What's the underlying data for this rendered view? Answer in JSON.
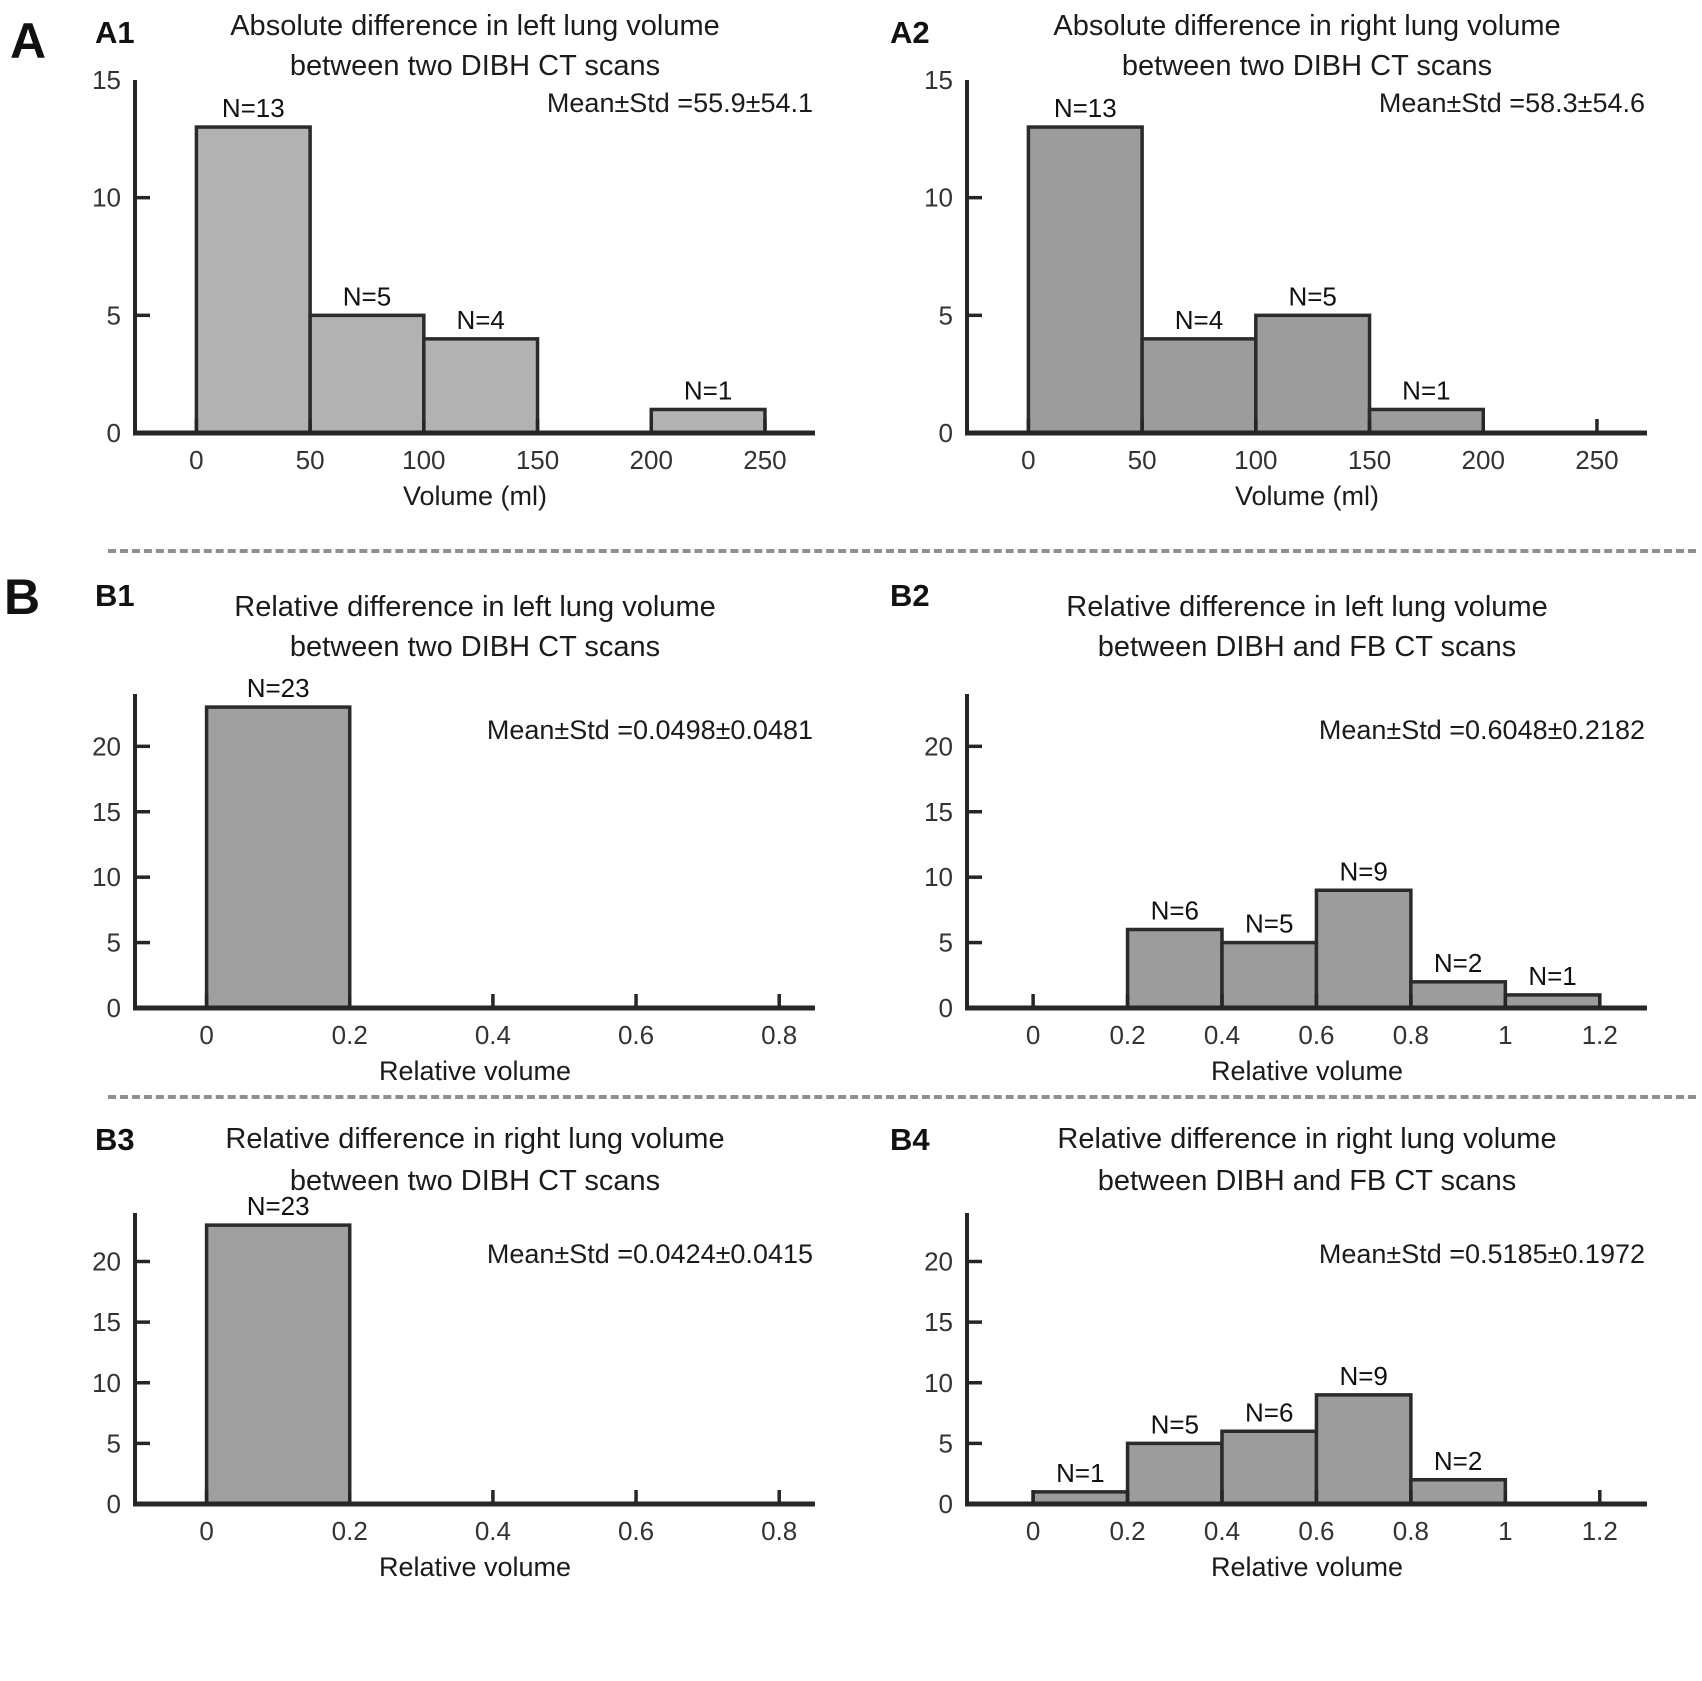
{
  "figure": {
    "group_labels": [
      "A",
      "B"
    ],
    "background_color": "#ffffff",
    "axis_color": "#262626",
    "separator_color": "#8f8f8f",
    "text_color": "#1b1b1b"
  },
  "chart_data": [
    {
      "id": "A1",
      "panel_tag": "A1",
      "type": "bar",
      "subtype": "histogram",
      "title_lines": [
        "Absolute difference in left lung volume",
        "between two DIBH CT scans"
      ],
      "xlabel": "Volume (ml)",
      "annotation": "Mean±Std =55.9±54.1",
      "bins": [
        {
          "range": [
            0,
            50
          ],
          "count": 13,
          "label": "N=13"
        },
        {
          "range": [
            50,
            100
          ],
          "count": 5,
          "label": "N=5"
        },
        {
          "range": [
            100,
            150
          ],
          "count": 4,
          "label": "N=4"
        },
        {
          "range": [
            200,
            250
          ],
          "count": 1,
          "label": "N=1"
        }
      ],
      "xticks": [
        {
          "v": 0,
          "label": "0"
        },
        {
          "v": 50,
          "label": "50"
        },
        {
          "v": 100,
          "label": "100"
        },
        {
          "v": 150,
          "label": "150"
        },
        {
          "v": 200,
          "label": "200"
        },
        {
          "v": 250,
          "label": "250"
        }
      ],
      "yticks": [
        {
          "v": 0,
          "label": "0"
        },
        {
          "v": 5,
          "label": "5"
        },
        {
          "v": 10,
          "label": "10"
        },
        {
          "v": 15,
          "label": "15"
        }
      ],
      "xlim": [
        -27,
        272
      ],
      "ylim": [
        0,
        15
      ],
      "grid": false,
      "bar_color": "#b2b2b2",
      "bar_edge_color": "#2b2b2b"
    },
    {
      "id": "A2",
      "panel_tag": "A2",
      "type": "bar",
      "subtype": "histogram",
      "title_lines": [
        "Absolute difference in right lung volume",
        "between two DIBH CT scans"
      ],
      "xlabel": "Volume (ml)",
      "annotation": "Mean±Std =58.3±54.6",
      "bins": [
        {
          "range": [
            0,
            50
          ],
          "count": 13,
          "label": "N=13"
        },
        {
          "range": [
            50,
            100
          ],
          "count": 4,
          "label": "N=4"
        },
        {
          "range": [
            100,
            150
          ],
          "count": 5,
          "label": "N=5"
        },
        {
          "range": [
            150,
            200
          ],
          "count": 1,
          "label": "N=1"
        }
      ],
      "xticks": [
        {
          "v": 0,
          "label": "0"
        },
        {
          "v": 50,
          "label": "50"
        },
        {
          "v": 100,
          "label": "100"
        },
        {
          "v": 150,
          "label": "150"
        },
        {
          "v": 200,
          "label": "200"
        },
        {
          "v": 250,
          "label": "250"
        }
      ],
      "yticks": [
        {
          "v": 0,
          "label": "0"
        },
        {
          "v": 5,
          "label": "5"
        },
        {
          "v": 10,
          "label": "10"
        },
        {
          "v": 15,
          "label": "15"
        }
      ],
      "xlim": [
        -27,
        272
      ],
      "ylim": [
        0,
        15
      ],
      "grid": false,
      "bar_color": "#9c9c9c",
      "bar_edge_color": "#2b2b2b"
    },
    {
      "id": "B1",
      "panel_tag": "B1",
      "type": "bar",
      "subtype": "histogram",
      "title_lines": [
        "Relative difference in left lung volume",
        "between two DIBH CT scans"
      ],
      "xlabel": "Relative volume",
      "annotation": "Mean±Std =0.0498±0.0481",
      "bins": [
        {
          "range": [
            0,
            0.2
          ],
          "count": 23,
          "label": "N=23"
        }
      ],
      "xticks": [
        {
          "v": 0,
          "label": "0"
        },
        {
          "v": 0.2,
          "label": "0.2"
        },
        {
          "v": 0.4,
          "label": "0.4"
        },
        {
          "v": 0.6,
          "label": "0.6"
        },
        {
          "v": 0.8,
          "label": "0.8"
        }
      ],
      "yticks": [
        {
          "v": 0,
          "label": "0"
        },
        {
          "v": 5,
          "label": "5"
        },
        {
          "v": 10,
          "label": "10"
        },
        {
          "v": 15,
          "label": "15"
        },
        {
          "v": 20,
          "label": "20"
        }
      ],
      "xlim": [
        -0.1,
        0.85
      ],
      "ylim": [
        0,
        24
      ],
      "grid": false,
      "bar_color": "#9f9f9f",
      "bar_edge_color": "#2b2b2b"
    },
    {
      "id": "B2",
      "panel_tag": "B2",
      "type": "bar",
      "subtype": "histogram",
      "title_lines": [
        "Relative difference in left lung volume",
        "between DIBH and FB CT scans"
      ],
      "xlabel": "Relative volume",
      "annotation": "Mean±Std =0.6048±0.2182",
      "bins": [
        {
          "range": [
            0.2,
            0.4
          ],
          "count": 6,
          "label": "N=6"
        },
        {
          "range": [
            0.4,
            0.6
          ],
          "count": 5,
          "label": "N=5"
        },
        {
          "range": [
            0.6,
            0.8
          ],
          "count": 9,
          "label": "N=9"
        },
        {
          "range": [
            0.8,
            1.0
          ],
          "count": 2,
          "label": "N=2"
        },
        {
          "range": [
            1.0,
            1.2
          ],
          "count": 1,
          "label": "N=1"
        }
      ],
      "xticks": [
        {
          "v": 0,
          "label": "0"
        },
        {
          "v": 0.2,
          "label": "0.2"
        },
        {
          "v": 0.4,
          "label": "0.4"
        },
        {
          "v": 0.6,
          "label": "0.6"
        },
        {
          "v": 0.8,
          "label": "0.8"
        },
        {
          "v": 1.0,
          "label": "1"
        },
        {
          "v": 1.2,
          "label": "1.2"
        }
      ],
      "yticks": [
        {
          "v": 0,
          "label": "0"
        },
        {
          "v": 5,
          "label": "5"
        },
        {
          "v": 10,
          "label": "10"
        },
        {
          "v": 15,
          "label": "15"
        },
        {
          "v": 20,
          "label": "20"
        }
      ],
      "xlim": [
        -0.14,
        1.3
      ],
      "ylim": [
        0,
        24
      ],
      "grid": false,
      "bar_color": "#9c9c9c",
      "bar_edge_color": "#2b2b2b"
    },
    {
      "id": "B3",
      "panel_tag": "B3",
      "type": "bar",
      "subtype": "histogram",
      "title_lines": [
        "Relative difference in right lung volume",
        "between two DIBH CT scans"
      ],
      "xlabel": "Relative volume",
      "annotation": "Mean±Std =0.0424±0.0415",
      "bins": [
        {
          "range": [
            0,
            0.2
          ],
          "count": 23,
          "label": "N=23"
        }
      ],
      "xticks": [
        {
          "v": 0,
          "label": "0"
        },
        {
          "v": 0.2,
          "label": "0.2"
        },
        {
          "v": 0.4,
          "label": "0.4"
        },
        {
          "v": 0.6,
          "label": "0.6"
        },
        {
          "v": 0.8,
          "label": "0.8"
        }
      ],
      "yticks": [
        {
          "v": 0,
          "label": "0"
        },
        {
          "v": 5,
          "label": "5"
        },
        {
          "v": 10,
          "label": "10"
        },
        {
          "v": 15,
          "label": "15"
        },
        {
          "v": 20,
          "label": "20"
        }
      ],
      "xlim": [
        -0.1,
        0.85
      ],
      "ylim": [
        0,
        24
      ],
      "grid": false,
      "bar_color": "#9f9f9f",
      "bar_edge_color": "#2b2b2b"
    },
    {
      "id": "B4",
      "panel_tag": "B4",
      "type": "bar",
      "subtype": "histogram",
      "title_lines": [
        "Relative difference in right lung volume",
        "between DIBH and FB CT scans"
      ],
      "xlabel": "Relative volume",
      "annotation": "Mean±Std =0.5185±0.1972",
      "bins": [
        {
          "range": [
            0,
            0.2
          ],
          "count": 1,
          "label": "N=1"
        },
        {
          "range": [
            0.2,
            0.4
          ],
          "count": 5,
          "label": "N=5"
        },
        {
          "range": [
            0.4,
            0.6
          ],
          "count": 6,
          "label": "N=6"
        },
        {
          "range": [
            0.6,
            0.8
          ],
          "count": 9,
          "label": "N=9"
        },
        {
          "range": [
            0.8,
            1.0
          ],
          "count": 2,
          "label": "N=2"
        }
      ],
      "xticks": [
        {
          "v": 0,
          "label": "0"
        },
        {
          "v": 0.2,
          "label": "0.2"
        },
        {
          "v": 0.4,
          "label": "0.4"
        },
        {
          "v": 0.6,
          "label": "0.6"
        },
        {
          "v": 0.8,
          "label": "0.8"
        },
        {
          "v": 1.0,
          "label": "1"
        },
        {
          "v": 1.2,
          "label": "1.2"
        }
      ],
      "yticks": [
        {
          "v": 0,
          "label": "0"
        },
        {
          "v": 5,
          "label": "5"
        },
        {
          "v": 10,
          "label": "10"
        },
        {
          "v": 15,
          "label": "15"
        },
        {
          "v": 20,
          "label": "20"
        }
      ],
      "xlim": [
        -0.14,
        1.3
      ],
      "ylim": [
        0,
        24
      ],
      "grid": false,
      "bar_color": "#9c9c9c",
      "bar_edge_color": "#2b2b2b"
    }
  ]
}
